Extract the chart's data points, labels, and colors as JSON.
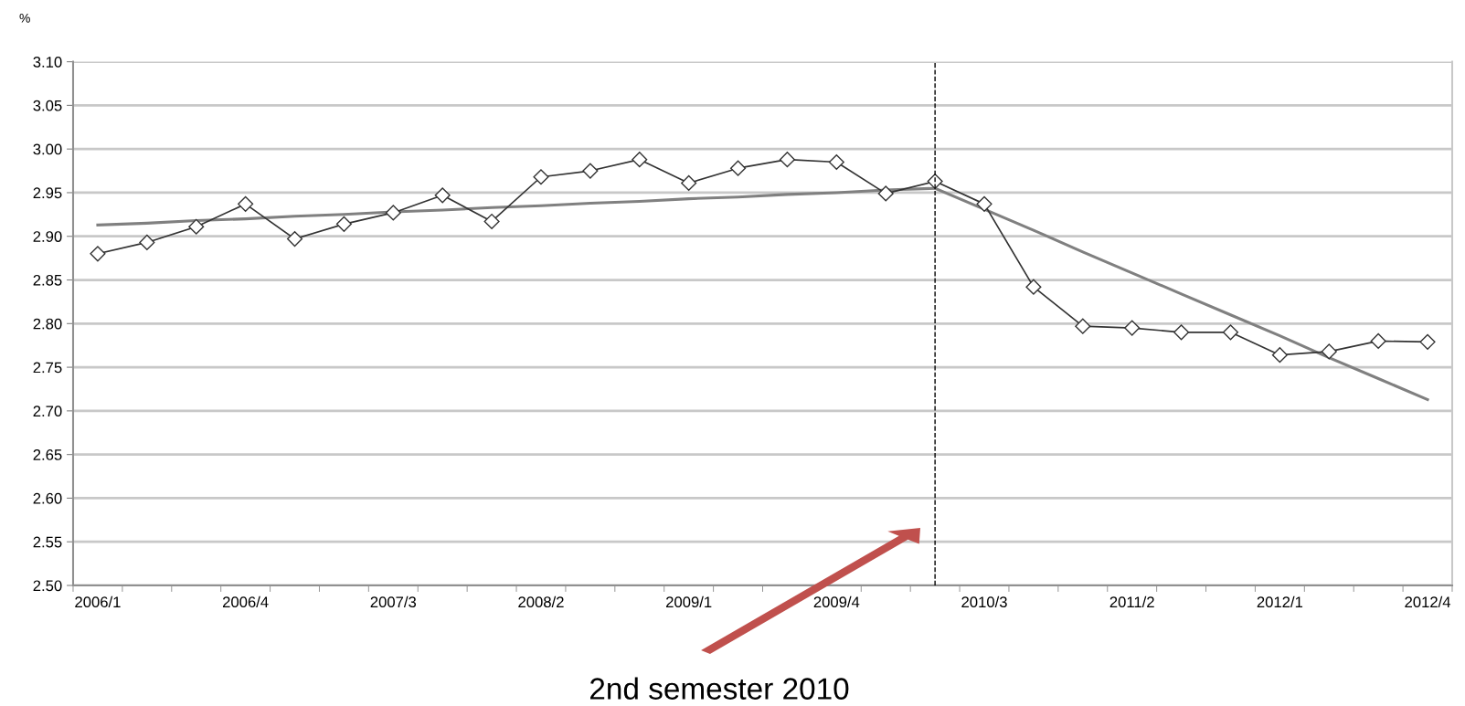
{
  "chart_data": {
    "type": "line",
    "ylabel": "%",
    "categories": [
      "2006/1",
      null,
      null,
      "2006/4",
      null,
      null,
      "2007/3",
      null,
      null,
      "2008/2",
      null,
      null,
      "2009/1",
      null,
      null,
      "2009/4",
      null,
      null,
      "2010/3",
      null,
      null,
      "2011/2",
      null,
      null,
      "2012/1",
      null,
      null,
      "2012/4"
    ],
    "series": [
      {
        "color": "#333333",
        "marker": "diamond",
        "values": [
          2.88,
          2.893,
          2.911,
          2.937,
          2.897,
          2.914,
          2.927,
          2.947,
          2.917,
          2.968,
          2.975,
          2.988,
          2.961,
          2.978,
          2.988,
          2.985,
          2.949,
          2.963,
          2.937,
          2.842,
          2.797,
          2.795,
          2.79,
          2.79,
          2.764,
          2.768,
          2.78,
          2.779
        ]
      },
      {
        "type": "line",
        "color": "#808080",
        "marker": "none",
        "values": [
          2.913,
          2.915,
          2.918,
          2.92,
          2.923,
          2.925,
          2.928,
          2.93,
          2.933,
          2.935,
          2.938,
          2.94,
          2.943,
          2.945,
          2.948,
          2.95,
          2.953,
          2.955,
          null,
          null,
          null,
          null,
          null,
          null,
          null,
          null,
          null,
          null
        ]
      },
      {
        "type": "line",
        "color": "#808080",
        "marker": "none",
        "values": [
          null,
          null,
          null,
          null,
          null,
          null,
          null,
          null,
          null,
          null,
          null,
          null,
          null,
          null,
          null,
          null,
          null,
          2.955,
          2.931,
          2.907,
          2.882,
          2.858,
          2.834,
          2.81,
          2.786,
          2.761,
          2.737,
          2.713
        ]
      }
    ],
    "ylim": [
      2.5,
      3.1
    ],
    "yticks": [
      {
        "value": 2.5,
        "label": "2.50"
      },
      {
        "value": 2.55,
        "label": "2.55"
      },
      {
        "value": 2.6,
        "label": "2.60"
      },
      {
        "value": 2.65,
        "label": "2.65"
      },
      {
        "value": 2.7,
        "label": "2.70"
      },
      {
        "value": 2.75,
        "label": "2.75"
      },
      {
        "value": 2.8,
        "label": "2.80"
      },
      {
        "value": 2.85,
        "label": "2.85"
      },
      {
        "value": 2.9,
        "label": "2.90"
      },
      {
        "value": 2.95,
        "label": "2.95"
      },
      {
        "value": 3.0,
        "label": "3.00"
      },
      {
        "value": 3.05,
        "label": "3.05"
      },
      {
        "value": 3.1,
        "label": "3.10"
      }
    ],
    "grid": "y",
    "annotations": [
      "2nd semester 2010"
    ]
  }
}
